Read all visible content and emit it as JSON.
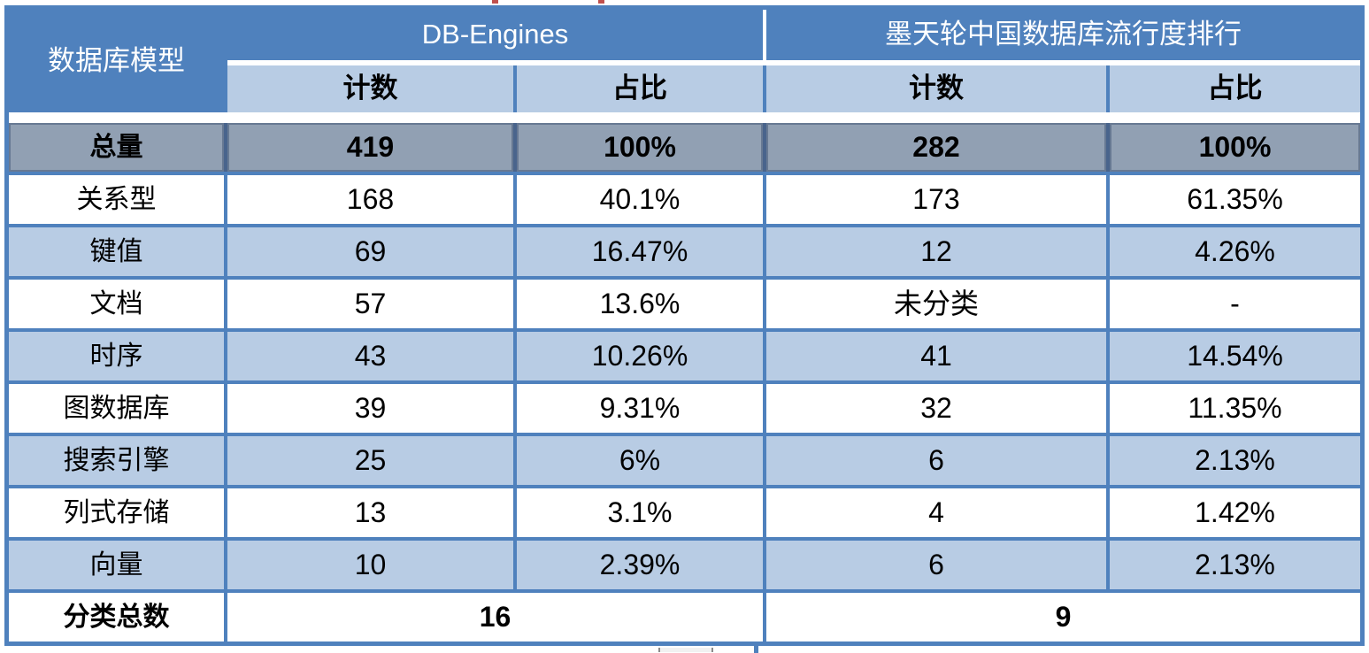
{
  "colors": {
    "header_blue": "#4F81BD",
    "subheader_light_blue": "#B8CCE4",
    "alt_row_light_blue": "#B8CCE4",
    "total_row_gray": "#91A0B3",
    "border_blue": "#4F81BD",
    "header_text": "#FFFFFF",
    "body_text": "#000000"
  },
  "table": {
    "corner_header": "数据库模型",
    "group_headers": [
      "DB-Engines",
      "墨天轮中国数据库流行度排行"
    ],
    "subheaders": [
      "计数",
      "占比",
      "计数",
      "占比"
    ],
    "total_row": {
      "label": "总量",
      "values": [
        "419",
        "100%",
        "282",
        "100%"
      ]
    },
    "rows": [
      {
        "label": "关系型",
        "values": [
          "168",
          "40.1%",
          "173",
          "61.35%"
        ]
      },
      {
        "label": "键值",
        "values": [
          "69",
          "16.47%",
          "12",
          "4.26%"
        ]
      },
      {
        "label": "文档",
        "values": [
          "57",
          "13.6%",
          "未分类",
          "-"
        ]
      },
      {
        "label": "时序",
        "values": [
          "43",
          "10.26%",
          "41",
          "14.54%"
        ]
      },
      {
        "label": "图数据库",
        "values": [
          "39",
          "9.31%",
          "32",
          "11.35%"
        ]
      },
      {
        "label": "搜索引擎",
        "values": [
          "25",
          "6%",
          "6",
          "2.13%"
        ]
      },
      {
        "label": "列式存储",
        "values": [
          "13",
          "3.1%",
          "4",
          "1.42%"
        ]
      },
      {
        "label": "向量",
        "values": [
          "10",
          "2.39%",
          "6",
          "2.13%"
        ]
      }
    ],
    "footer_row": {
      "label": "分类总数",
      "values": [
        "16",
        "9"
      ]
    }
  },
  "chart_data": {
    "type": "table",
    "columns": [
      "数据库模型",
      "DB-Engines 计数",
      "DB-Engines 占比",
      "墨天轮中国数据库流行度排行 计数",
      "墨天轮中国数据库流行度排行 占比"
    ],
    "rows": [
      [
        "总量",
        419,
        "100%",
        282,
        "100%"
      ],
      [
        "关系型",
        168,
        "40.1%",
        173,
        "61.35%"
      ],
      [
        "键值",
        69,
        "16.47%",
        12,
        "4.26%"
      ],
      [
        "文档",
        57,
        "13.6%",
        "未分类",
        "-"
      ],
      [
        "时序",
        43,
        "10.26%",
        41,
        "14.54%"
      ],
      [
        "图数据库",
        39,
        "9.31%",
        32,
        "11.35%"
      ],
      [
        "搜索引擎",
        25,
        "6%",
        6,
        "2.13%"
      ],
      [
        "列式存储",
        13,
        "3.1%",
        4,
        "1.42%"
      ],
      [
        "向量",
        10,
        "2.39%",
        6,
        "2.13%"
      ],
      [
        "分类总数",
        16,
        "",
        9,
        ""
      ]
    ],
    "layout": "comparison table, alternating white / light-blue rows, gray bold total row, blue grid borders"
  }
}
